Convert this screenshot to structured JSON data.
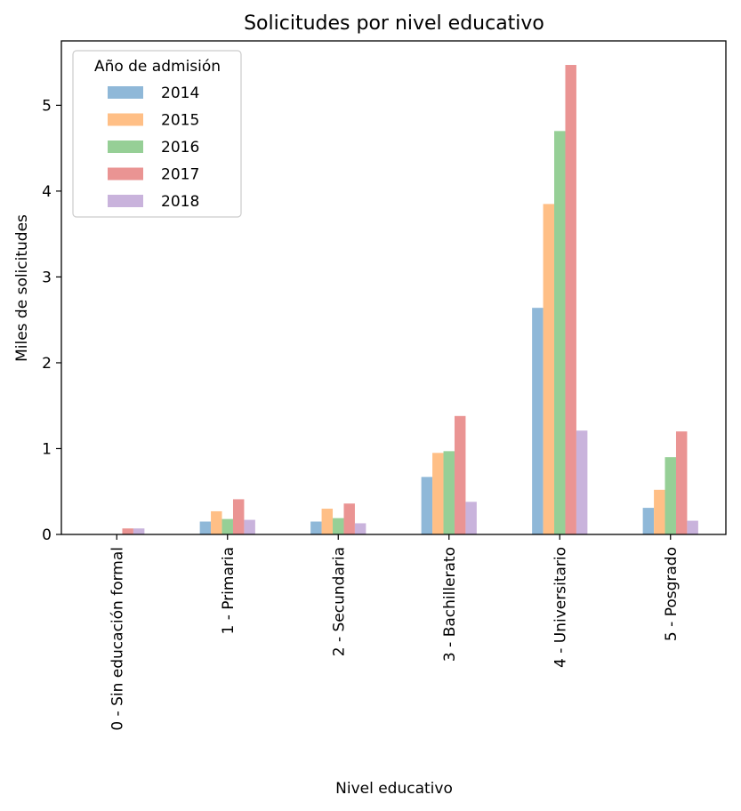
{
  "chart_data": {
    "type": "bar",
    "title": "Solicitudes por nivel educativo",
    "xlabel": "Nivel educativo",
    "ylabel": "Miles de solicitudes",
    "ylim": [
      0,
      5.75
    ],
    "yticks": [
      0,
      1,
      2,
      3,
      4,
      5
    ],
    "grid": false,
    "legend_position": "top-left",
    "legend_title": "Año de admisión",
    "categories": [
      "0 - Sin educación formal",
      "1 - Primaria",
      "2 - Secundaria",
      "3 - Bachillerato",
      "4 - Universitario",
      "5 - Posgrado"
    ],
    "series": [
      {
        "name": "2014",
        "color": "#8fb8d8",
        "values": [
          0.0,
          0.15,
          0.15,
          0.67,
          2.64,
          0.31
        ]
      },
      {
        "name": "2015",
        "color": "#ffbf86",
        "values": [
          0.0,
          0.27,
          0.3,
          0.95,
          3.85,
          0.52
        ]
      },
      {
        "name": "2016",
        "color": "#96cf96",
        "values": [
          0.0,
          0.18,
          0.19,
          0.97,
          4.7,
          0.9
        ]
      },
      {
        "name": "2017",
        "color": "#ea9493",
        "values": [
          0.07,
          0.41,
          0.36,
          1.38,
          5.47,
          1.2
        ]
      },
      {
        "name": "2018",
        "color": "#c9b3dc",
        "values": [
          0.07,
          0.17,
          0.13,
          0.38,
          1.21,
          0.16
        ]
      }
    ]
  }
}
